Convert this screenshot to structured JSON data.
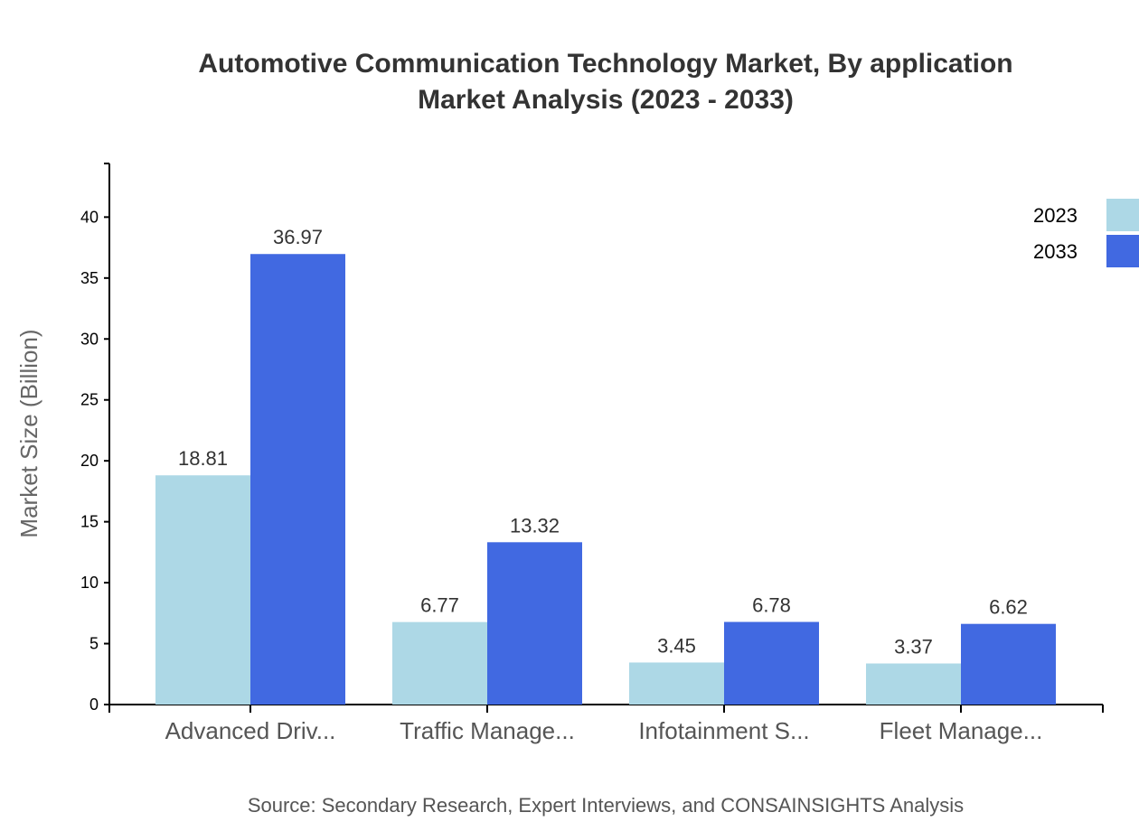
{
  "chart_data": {
    "type": "bar",
    "title": "Automotive Communication Technology Market, By application",
    "subtitle": "Market Analysis (2023 - 2033)",
    "xlabel": "",
    "ylabel": "Market Size (Billion)",
    "ylim": [
      0,
      44.4
    ],
    "yticks": [
      0,
      5,
      10,
      15,
      20,
      25,
      30,
      35,
      40
    ],
    "categories": [
      "Advanced Driv...",
      "Traffic Manage...",
      "Infotainment S...",
      "Fleet Manage..."
    ],
    "series": [
      {
        "name": "2023",
        "color": "#add8e6",
        "values": [
          18.81,
          6.77,
          3.45,
          3.37
        ]
      },
      {
        "name": "2033",
        "color": "#4169e1",
        "values": [
          36.97,
          13.32,
          6.78,
          6.62
        ]
      }
    ],
    "legend_position": "top-right",
    "grid": false,
    "source": "Source: Secondary Research, Expert Interviews, and CONSAINSIGHTS Analysis"
  }
}
